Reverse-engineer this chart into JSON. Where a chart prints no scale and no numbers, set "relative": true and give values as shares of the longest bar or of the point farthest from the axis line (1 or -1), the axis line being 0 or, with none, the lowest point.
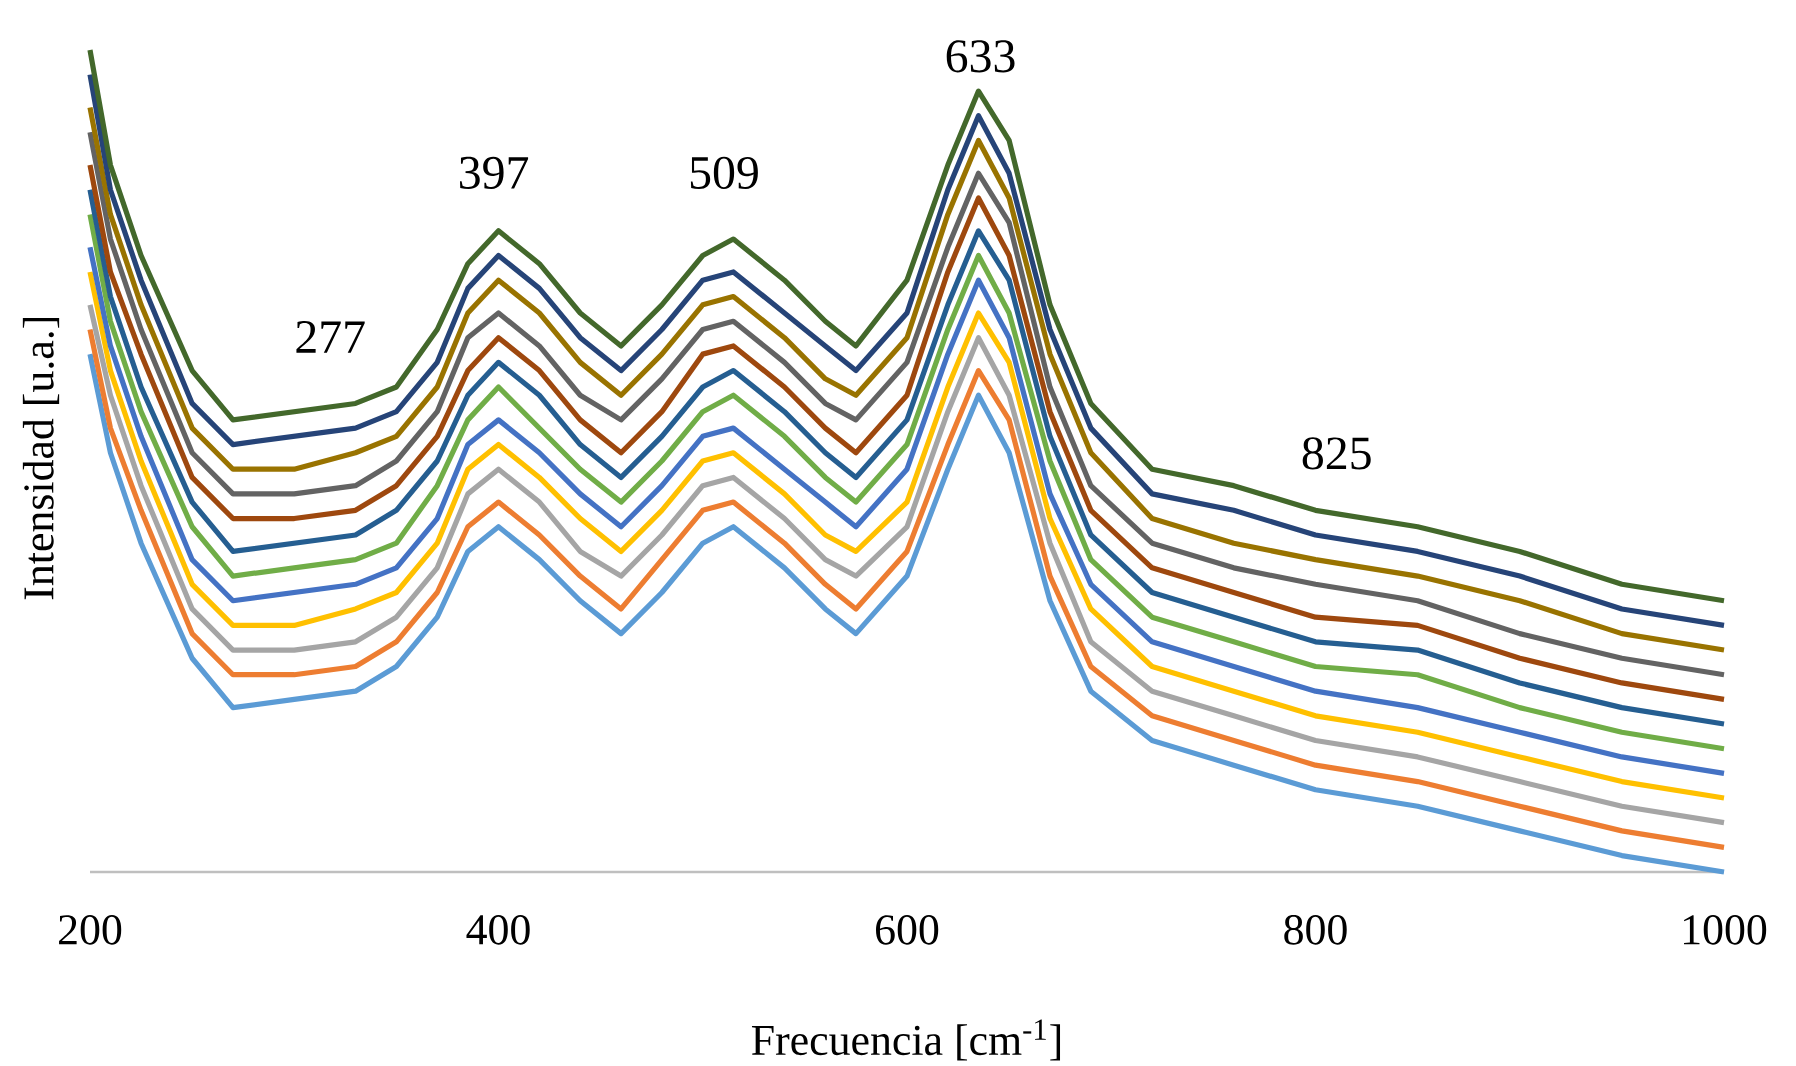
{
  "chart_data": {
    "type": "line",
    "relative": true,
    "xlabel": "Frecuencia [cm$^{-1}$]",
    "ylabel": "Intensidad [u.a.]",
    "xlim": [
      200,
      1000
    ],
    "xticks": [
      200,
      400,
      600,
      800,
      1000
    ],
    "x": [
      200,
      210,
      225,
      250,
      270,
      300,
      330,
      350,
      370,
      385,
      400,
      420,
      440,
      460,
      480,
      500,
      515,
      540,
      560,
      575,
      600,
      620,
      635,
      650,
      670,
      690,
      720,
      760,
      800,
      850,
      900,
      950,
      1000
    ],
    "series": [
      {
        "color": "#5b9bd5",
        "values": [
          0.63,
          0.51,
          0.4,
          0.26,
          0.2,
          0.21,
          0.22,
          0.25,
          0.31,
          0.39,
          0.42,
          0.38,
          0.33,
          0.29,
          0.34,
          0.4,
          0.42,
          0.37,
          0.32,
          0.29,
          0.36,
          0.49,
          0.58,
          0.51,
          0.33,
          0.22,
          0.16,
          0.13,
          0.1,
          0.08,
          0.05,
          0.02,
          0
        ]
      },
      {
        "color": "#ed7d31",
        "values": [
          0.66,
          0.54,
          0.44,
          0.29,
          0.24,
          0.24,
          0.25,
          0.28,
          0.34,
          0.42,
          0.45,
          0.41,
          0.36,
          0.32,
          0.38,
          0.44,
          0.45,
          0.4,
          0.35,
          0.32,
          0.39,
          0.52,
          0.61,
          0.55,
          0.36,
          0.25,
          0.19,
          0.16,
          0.13,
          0.11,
          0.08,
          0.05,
          0.03
        ]
      },
      {
        "color": "#a5a5a5",
        "values": [
          0.69,
          0.58,
          0.47,
          0.32,
          0.27,
          0.27,
          0.28,
          0.31,
          0.37,
          0.46,
          0.49,
          0.45,
          0.39,
          0.36,
          0.41,
          0.47,
          0.48,
          0.43,
          0.38,
          0.36,
          0.42,
          0.56,
          0.65,
          0.58,
          0.4,
          0.28,
          0.22,
          0.19,
          0.16,
          0.14,
          0.11,
          0.08,
          0.06
        ]
      },
      {
        "color": "#ffc000",
        "values": [
          0.73,
          0.61,
          0.5,
          0.35,
          0.3,
          0.3,
          0.32,
          0.34,
          0.4,
          0.49,
          0.52,
          0.48,
          0.43,
          0.39,
          0.44,
          0.5,
          0.51,
          0.46,
          0.41,
          0.39,
          0.45,
          0.59,
          0.68,
          0.62,
          0.43,
          0.32,
          0.25,
          0.22,
          0.19,
          0.17,
          0.14,
          0.11,
          0.09
        ]
      },
      {
        "color": "#4472c4",
        "values": [
          0.76,
          0.64,
          0.53,
          0.38,
          0.33,
          0.34,
          0.35,
          0.37,
          0.43,
          0.52,
          0.55,
          0.51,
          0.46,
          0.42,
          0.47,
          0.53,
          0.54,
          0.49,
          0.45,
          0.42,
          0.49,
          0.63,
          0.72,
          0.65,
          0.46,
          0.35,
          0.28,
          0.25,
          0.22,
          0.2,
          0.17,
          0.14,
          0.12
        ]
      },
      {
        "color": "#70ad47",
        "values": [
          0.8,
          0.67,
          0.56,
          0.42,
          0.36,
          0.37,
          0.38,
          0.4,
          0.47,
          0.55,
          0.59,
          0.54,
          0.49,
          0.45,
          0.5,
          0.56,
          0.58,
          0.53,
          0.48,
          0.45,
          0.52,
          0.66,
          0.75,
          0.68,
          0.5,
          0.38,
          0.31,
          0.28,
          0.25,
          0.24,
          0.2,
          0.17,
          0.15
        ]
      },
      {
        "color": "#255e91",
        "values": [
          0.83,
          0.7,
          0.59,
          0.45,
          0.39,
          0.4,
          0.41,
          0.44,
          0.5,
          0.58,
          0.62,
          0.58,
          0.52,
          0.48,
          0.53,
          0.59,
          0.61,
          0.56,
          0.51,
          0.48,
          0.55,
          0.69,
          0.78,
          0.72,
          0.53,
          0.41,
          0.34,
          0.31,
          0.28,
          0.27,
          0.23,
          0.2,
          0.18
        ]
      },
      {
        "color": "#9e480e",
        "values": [
          0.86,
          0.73,
          0.63,
          0.48,
          0.43,
          0.43,
          0.44,
          0.47,
          0.53,
          0.61,
          0.65,
          0.61,
          0.55,
          0.51,
          0.56,
          0.63,
          0.64,
          0.59,
          0.54,
          0.51,
          0.58,
          0.73,
          0.82,
          0.75,
          0.56,
          0.44,
          0.37,
          0.34,
          0.31,
          0.3,
          0.26,
          0.23,
          0.21
        ]
      },
      {
        "color": "#636363",
        "values": [
          0.9,
          0.77,
          0.66,
          0.51,
          0.46,
          0.46,
          0.47,
          0.5,
          0.56,
          0.65,
          0.68,
          0.64,
          0.58,
          0.55,
          0.6,
          0.66,
          0.67,
          0.62,
          0.57,
          0.55,
          0.62,
          0.76,
          0.85,
          0.79,
          0.59,
          0.47,
          0.4,
          0.37,
          0.35,
          0.33,
          0.29,
          0.26,
          0.24
        ]
      },
      {
        "color": "#997300",
        "values": [
          0.93,
          0.8,
          0.69,
          0.54,
          0.49,
          0.49,
          0.51,
          0.53,
          0.59,
          0.68,
          0.72,
          0.68,
          0.62,
          0.58,
          0.63,
          0.69,
          0.7,
          0.65,
          0.6,
          0.58,
          0.65,
          0.8,
          0.89,
          0.82,
          0.63,
          0.51,
          0.43,
          0.4,
          0.38,
          0.36,
          0.33,
          0.29,
          0.27
        ]
      },
      {
        "color": "#264478",
        "values": [
          0.97,
          0.83,
          0.72,
          0.57,
          0.52,
          0.53,
          0.54,
          0.56,
          0.62,
          0.71,
          0.75,
          0.71,
          0.65,
          0.61,
          0.66,
          0.72,
          0.73,
          0.68,
          0.64,
          0.61,
          0.68,
          0.83,
          0.92,
          0.85,
          0.66,
          0.54,
          0.46,
          0.44,
          0.41,
          0.39,
          0.36,
          0.32,
          0.3
        ]
      },
      {
        "color": "#43682b",
        "values": [
          1.0,
          0.86,
          0.75,
          0.61,
          0.55,
          0.56,
          0.57,
          0.59,
          0.66,
          0.74,
          0.78,
          0.74,
          0.68,
          0.64,
          0.69,
          0.75,
          0.77,
          0.72,
          0.67,
          0.64,
          0.72,
          0.86,
          0.95,
          0.89,
          0.69,
          0.57,
          0.49,
          0.47,
          0.44,
          0.42,
          0.39,
          0.35,
          0.33
        ]
      }
    ],
    "annotations": [
      "277",
      "397",
      "509",
      "633",
      "825"
    ]
  }
}
